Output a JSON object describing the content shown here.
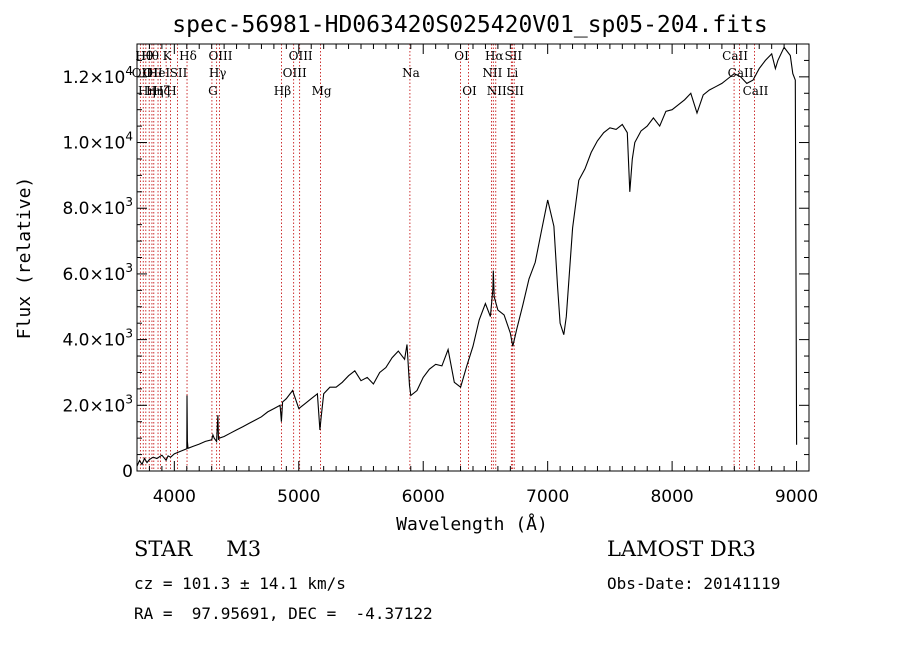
{
  "chart_data": {
    "type": "line",
    "title": "spec-56981-HD063420S025420V01_sp05-204.fits",
    "xlabel": "Wavelength (Å)",
    "ylabel": "Flux (relative)",
    "xlim": [
      3700,
      9100
    ],
    "ylim": [
      0,
      13000
    ],
    "x_ticks": [
      4000,
      5000,
      6000,
      7000,
      8000,
      9000
    ],
    "x_tick_labels": [
      "4000",
      "5000",
      "6000",
      "7000",
      "8000",
      "9000"
    ],
    "y_ticks": [
      0,
      2000,
      4000,
      6000,
      8000,
      10000,
      12000
    ],
    "y_tick_labels": [
      {
        "mant": "0",
        "exp": ""
      },
      {
        "mant": "2.0×10",
        "exp": "3"
      },
      {
        "mant": "4.0×10",
        "exp": "3"
      },
      {
        "mant": "6.0×10",
        "exp": "3"
      },
      {
        "mant": "8.0×10",
        "exp": "3"
      },
      {
        "mant": "1.0×10",
        "exp": "4"
      },
      {
        "mant": "1.2×10",
        "exp": "4"
      }
    ],
    "series": [
      {
        "name": "spectrum",
        "x": [
          3700,
          3720,
          3740,
          3760,
          3780,
          3800,
          3830,
          3860,
          3900,
          3934,
          3950,
          3970,
          4000,
          4050,
          4100,
          4102,
          4105,
          4110,
          4150,
          4200,
          4250,
          4300,
          4310,
          4320,
          4340,
          4350,
          4355,
          4360,
          4400,
          4450,
          4500,
          4550,
          4600,
          4650,
          4700,
          4750,
          4800,
          4850,
          4860,
          4870,
          4900,
          4950,
          5000,
          5050,
          5100,
          5150,
          5170,
          5180,
          5200,
          5250,
          5300,
          5350,
          5400,
          5450,
          5500,
          5550,
          5600,
          5650,
          5700,
          5750,
          5800,
          5850,
          5870,
          5890,
          5900,
          5950,
          6000,
          6050,
          6100,
          6150,
          6200,
          6250,
          6300,
          6350,
          6400,
          6450,
          6500,
          6540,
          6560,
          6563,
          6570,
          6600,
          6650,
          6700,
          6720,
          6750,
          6800,
          6850,
          6900,
          6950,
          7000,
          7050,
          7080,
          7100,
          7130,
          7150,
          7200,
          7250,
          7300,
          7350,
          7400,
          7450,
          7500,
          7550,
          7600,
          7640,
          7660,
          7680,
          7700,
          7750,
          7800,
          7850,
          7900,
          7950,
          8000,
          8050,
          8100,
          8150,
          8200,
          8250,
          8300,
          8350,
          8400,
          8450,
          8500,
          8550,
          8600,
          8650,
          8700,
          8750,
          8800,
          8830,
          8850,
          8900,
          8950,
          8970,
          8990,
          9000
        ],
        "values": [
          150,
          320,
          200,
          380,
          260,
          350,
          420,
          380,
          480,
          330,
          460,
          420,
          520,
          600,
          680,
          2300,
          900,
          690,
          750,
          820,
          900,
          950,
          1100,
          1000,
          900,
          1700,
          950,
          1000,
          1050,
          1150,
          1250,
          1350,
          1450,
          1550,
          1650,
          1800,
          1900,
          2000,
          1500,
          2100,
          2200,
          2450,
          1900,
          2050,
          2200,
          2350,
          1250,
          1650,
          2350,
          2550,
          2550,
          2700,
          2900,
          3050,
          2750,
          2850,
          2650,
          3000,
          3150,
          3450,
          3650,
          3400,
          3850,
          2600,
          2300,
          2450,
          2850,
          3100,
          3250,
          3200,
          3700,
          2700,
          2550,
          3200,
          3800,
          4600,
          5100,
          4700,
          5550,
          6100,
          5300,
          4900,
          4750,
          4200,
          3800,
          4300,
          5050,
          5850,
          6350,
          7300,
          8250,
          7450,
          5600,
          4500,
          4150,
          4700,
          7400,
          8850,
          9200,
          9700,
          10050,
          10300,
          10450,
          10400,
          10550,
          10300,
          8500,
          9500,
          10000,
          10350,
          10500,
          10750,
          10500,
          10950,
          11000,
          11150,
          11300,
          11500,
          10900,
          11450,
          11600,
          11700,
          11800,
          11950,
          12100,
          12000,
          11800,
          11900,
          12250,
          12500,
          12700,
          12250,
          12500,
          12900,
          12650,
          12100,
          11900,
          800
        ]
      }
    ],
    "line_markers": [
      {
        "wavelength": 3727,
        "label": "OII",
        "row": 2
      },
      {
        "wavelength": 3750,
        "label": "Hθ",
        "row": 1
      },
      {
        "wavelength": 3771,
        "label": "Hη",
        "row": 3
      },
      {
        "wavelength": 3798,
        "label": "Hθ",
        "row": 1
      },
      {
        "wavelength": 3820,
        "label": "OII",
        "row": 2
      },
      {
        "wavelength": 3835,
        "label": "Hη",
        "row": 3
      },
      {
        "wavelength": 3869,
        "label": "HeI",
        "row": 2
      },
      {
        "wavelength": 3889,
        "label": "Hζ",
        "row": 3
      },
      {
        "wavelength": 3934,
        "label": "K",
        "row": 1
      },
      {
        "wavelength": 3969,
        "label": "H",
        "row": 3
      },
      {
        "wavelength": 4026,
        "label": "SII",
        "row": 2
      },
      {
        "wavelength": 4102,
        "label": "Hδ",
        "row": 1
      },
      {
        "wavelength": 4302,
        "label": "G",
        "row": 3
      },
      {
        "wavelength": 4340,
        "label": "Hγ",
        "row": 2
      },
      {
        "wavelength": 4363,
        "label": "OIII",
        "row": 1
      },
      {
        "wavelength": 4861,
        "label": "Hβ",
        "row": 3
      },
      {
        "wavelength": 4959,
        "label": "OIII",
        "row": 2
      },
      {
        "wavelength": 5007,
        "label": "OIII",
        "row": 1
      },
      {
        "wavelength": 5175,
        "label": "Mg",
        "row": 3
      },
      {
        "wavelength": 5893,
        "label": "Na",
        "row": 2
      },
      {
        "wavelength": 6300,
        "label": "OI",
        "row": 1
      },
      {
        "wavelength": 6364,
        "label": "OI",
        "row": 3
      },
      {
        "wavelength": 6548,
        "label": "NII",
        "row": 2
      },
      {
        "wavelength": 6563,
        "label": "Hα",
        "row": 1
      },
      {
        "wavelength": 6583,
        "label": "NII",
        "row": 3
      },
      {
        "wavelength": 6708,
        "label": "Li",
        "row": 2
      },
      {
        "wavelength": 6716,
        "label": "SII",
        "row": 1
      },
      {
        "wavelength": 6731,
        "label": "SII",
        "row": 3
      },
      {
        "wavelength": 8498,
        "label": "CaII",
        "row": 1
      },
      {
        "wavelength": 8542,
        "label": "CaII",
        "row": 2
      },
      {
        "wavelength": 8662,
        "label": "CaII",
        "row": 3
      }
    ],
    "colors": {
      "spectrum": "#000000",
      "markers": "#c00000",
      "axes": "#000000"
    }
  },
  "footer": {
    "object_class": "STAR",
    "subclass": "M3",
    "survey": "LAMOST DR3",
    "cz": "cz = 101.3 ± 14.1 km/s",
    "obs_date": "Obs-Date: 20141119",
    "radec": "RA =  97.95691, DEC =  -4.37122"
  }
}
